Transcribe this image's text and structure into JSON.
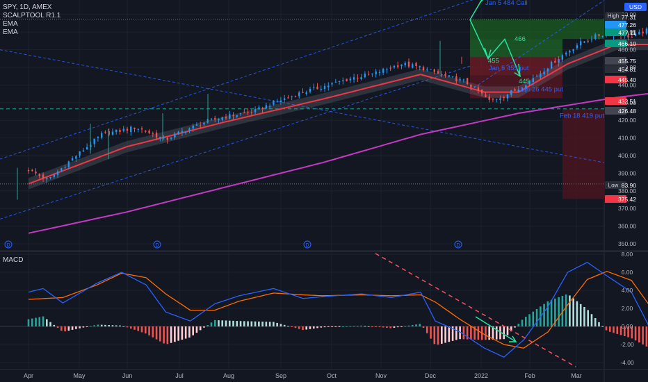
{
  "header": {
    "symbol_line": "SPY, 1D, AMEX",
    "indicators": [
      "SCALPTOOL R1.1",
      "EMA",
      "EMA"
    ],
    "currency": "USD"
  },
  "colors": {
    "background": "#131722",
    "bull": "#2196f3",
    "bear": "#ef5350",
    "ema_fast": "#f23645",
    "ema_slow": "#c339c3",
    "macd_line": "#2962ff",
    "signal_line": "#ff6d00",
    "arrow": "#26e5a0",
    "trend_dash": "#2962ff",
    "macd_trend": "#f7525f"
  },
  "chart_data": [
    {
      "type": "candlestick",
      "panel": "price",
      "title": "SPY, 1D, AMEX",
      "x_labels": [
        "Apr",
        "May",
        "Jun",
        "Jul",
        "Aug",
        "Sep",
        "Oct",
        "Nov",
        "Dec",
        "2022",
        "Feb",
        "Mar"
      ],
      "y_ticks": [
        350,
        360,
        370,
        380,
        390,
        400,
        410,
        420,
        430,
        440,
        450,
        460,
        470,
        480,
        490
      ],
      "ylim": [
        348,
        490
      ],
      "close_path": [
        {
          "t": 0,
          "v": 392
        },
        {
          "t": 0.4,
          "v": 386
        },
        {
          "t": 0.8,
          "v": 396
        },
        {
          "t": 1.5,
          "v": 412
        },
        {
          "t": 2.2,
          "v": 416
        },
        {
          "t": 2.8,
          "v": 409
        },
        {
          "t": 3.0,
          "v": 412
        },
        {
          "t": 3.6,
          "v": 419
        },
        {
          "t": 4.0,
          "v": 422
        },
        {
          "t": 4.6,
          "v": 425
        },
        {
          "t": 5.0,
          "v": 430
        },
        {
          "t": 5.6,
          "v": 436
        },
        {
          "t": 6.0,
          "v": 439
        },
        {
          "t": 6.6,
          "v": 444
        },
        {
          "t": 7.0,
          "v": 446
        },
        {
          "t": 7.6,
          "v": 452
        },
        {
          "t": 8.0,
          "v": 450
        },
        {
          "t": 8.5,
          "v": 445
        },
        {
          "t": 8.9,
          "v": 442
        },
        {
          "t": 9.2,
          "v": 436
        },
        {
          "t": 9.4,
          "v": 431
        },
        {
          "t": 9.7,
          "v": 434
        },
        {
          "t": 10.0,
          "v": 438
        },
        {
          "t": 10.4,
          "v": 446
        },
        {
          "t": 10.8,
          "v": 455
        },
        {
          "t": 11.2,
          "v": 463
        },
        {
          "t": 11.6,
          "v": 468
        },
        {
          "t": 12.0,
          "v": 470
        },
        {
          "t": 12.3,
          "v": 467
        },
        {
          "t": 12.6,
          "v": 471
        },
        {
          "t": 12.8,
          "v": 466
        },
        {
          "t": 13.0,
          "v": 458
        },
        {
          "t": 13.2,
          "v": 467
        },
        {
          "t": 13.4,
          "v": 466
        },
        {
          "t": 13.6,
          "v": 472
        },
        {
          "t": 13.9,
          "v": 470
        },
        {
          "t": 14.1,
          "v": 477
        }
      ],
      "ema_fast_path": [
        {
          "t": 0,
          "v": 384
        },
        {
          "t": 2,
          "v": 405
        },
        {
          "t": 4,
          "v": 419
        },
        {
          "t": 6,
          "v": 432
        },
        {
          "t": 8,
          "v": 446
        },
        {
          "t": 9.3,
          "v": 436
        },
        {
          "t": 10,
          "v": 436
        },
        {
          "t": 11,
          "v": 452
        },
        {
          "t": 12,
          "v": 463
        },
        {
          "t": 13,
          "v": 463
        },
        {
          "t": 14.1,
          "v": 466
        }
      ],
      "ema_slow_path": [
        {
          "t": 0,
          "v": 356
        },
        {
          "t": 2,
          "v": 368
        },
        {
          "t": 4,
          "v": 382
        },
        {
          "t": 6,
          "v": 396
        },
        {
          "t": 8,
          "v": 412
        },
        {
          "t": 10,
          "v": 424
        },
        {
          "t": 12,
          "v": 433
        },
        {
          "t": 14.2,
          "v": 440
        }
      ],
      "price_axis_tags": [
        {
          "label": "477.31",
          "color": "#2a2e39"
        },
        {
          "label": "477.26",
          "color": "#2196f3"
        },
        {
          "label": "477.11",
          "color": "#089981"
        },
        {
          "label": "466.10",
          "color": "#089981"
        },
        {
          "label": "455.75",
          "color": "#434651"
        },
        {
          "label": "454.81",
          "color": "#2a2e39"
        },
        {
          "label": "445.40",
          "color": "#f23645"
        },
        {
          "label": "432.51",
          "color": "#f23645"
        },
        {
          "label": "426.48",
          "color": "#434651"
        },
        {
          "label": "383.90",
          "color": "#2a2e39"
        },
        {
          "label": "375.42",
          "color": "#f23645"
        }
      ],
      "high_label": "High",
      "low_label": "Low",
      "annotations": [
        {
          "text": "Jan 5 484 Call",
          "color": "#2962ff"
        },
        {
          "text": "466",
          "color": "#26e5a0"
        },
        {
          "text": "455",
          "color": "#26e5a0"
        },
        {
          "text": "Jan 5 455 put",
          "color": "#2962ff"
        },
        {
          "text": "445",
          "color": "#26e5a0"
        },
        {
          "text": "Jan 26 445 put",
          "color": "#2962ff"
        },
        {
          "text": "Feb 18 419 put",
          "color": "#2962ff"
        }
      ],
      "dividend_marker": "D"
    },
    {
      "type": "bar+line",
      "panel": "macd",
      "title": "MACD",
      "y_ticks": [
        "8.00",
        "6.00",
        "4.00",
        "2.00",
        "0.00",
        "-2.00",
        "-4.00"
      ],
      "ylim": [
        -4.0,
        8.0
      ],
      "series": [
        {
          "name": "MACD",
          "path": [
            {
              "t": 0,
              "v": 3.8
            },
            {
              "t": 0.3,
              "v": 4.2
            },
            {
              "t": 0.7,
              "v": 2.6
            },
            {
              "t": 1.4,
              "v": 4.8
            },
            {
              "t": 1.9,
              "v": 6.0
            },
            {
              "t": 2.4,
              "v": 4.6
            },
            {
              "t": 2.8,
              "v": 1.6
            },
            {
              "t": 3.3,
              "v": 0.6
            },
            {
              "t": 3.8,
              "v": 2.5
            },
            {
              "t": 4.3,
              "v": 3.4
            },
            {
              "t": 5.0,
              "v": 4.2
            },
            {
              "t": 5.6,
              "v": 3.1
            },
            {
              "t": 6.0,
              "v": 3.3
            },
            {
              "t": 6.8,
              "v": 3.6
            },
            {
              "t": 7.4,
              "v": 3.2
            },
            {
              "t": 8.0,
              "v": 3.8
            },
            {
              "t": 8.3,
              "v": 0.6
            },
            {
              "t": 8.8,
              "v": -0.6
            },
            {
              "t": 9.3,
              "v": -2.4
            },
            {
              "t": 9.7,
              "v": -3.4
            },
            {
              "t": 10.1,
              "v": -1.5
            },
            {
              "t": 10.6,
              "v": 2.2
            },
            {
              "t": 11.0,
              "v": 6.0
            },
            {
              "t": 11.4,
              "v": 7.1
            },
            {
              "t": 11.8,
              "v": 5.6
            },
            {
              "t": 12.3,
              "v": 3.8
            },
            {
              "t": 12.7,
              "v": -0.4
            },
            {
              "t": 13.1,
              "v": 0.3
            },
            {
              "t": 13.5,
              "v": 1.9
            },
            {
              "t": 13.8,
              "v": 0.5
            },
            {
              "t": 14.1,
              "v": 1.3
            }
          ]
        },
        {
          "name": "Signal",
          "path": [
            {
              "t": 0,
              "v": 3.0
            },
            {
              "t": 0.7,
              "v": 3.2
            },
            {
              "t": 1.4,
              "v": 4.6
            },
            {
              "t": 1.9,
              "v": 5.9
            },
            {
              "t": 2.4,
              "v": 5.4
            },
            {
              "t": 2.8,
              "v": 3.6
            },
            {
              "t": 3.3,
              "v": 1.8
            },
            {
              "t": 3.8,
              "v": 1.8
            },
            {
              "t": 4.3,
              "v": 2.8
            },
            {
              "t": 5.0,
              "v": 3.7
            },
            {
              "t": 5.6,
              "v": 3.5
            },
            {
              "t": 6.0,
              "v": 3.4
            },
            {
              "t": 6.8,
              "v": 3.5
            },
            {
              "t": 7.4,
              "v": 3.4
            },
            {
              "t": 8.0,
              "v": 3.5
            },
            {
              "t": 8.3,
              "v": 2.7
            },
            {
              "t": 8.8,
              "v": 0.8
            },
            {
              "t": 9.3,
              "v": -0.9
            },
            {
              "t": 9.7,
              "v": -2.0
            },
            {
              "t": 10.1,
              "v": -2.4
            },
            {
              "t": 10.6,
              "v": -0.6
            },
            {
              "t": 11.0,
              "v": 2.4
            },
            {
              "t": 11.4,
              "v": 5.2
            },
            {
              "t": 11.8,
              "v": 6.1
            },
            {
              "t": 12.3,
              "v": 5.1
            },
            {
              "t": 12.7,
              "v": 2.1
            },
            {
              "t": 13.1,
              "v": 0.6
            },
            {
              "t": 13.5,
              "v": 1.5
            },
            {
              "t": 13.8,
              "v": 1.4
            },
            {
              "t": 14.1,
              "v": 1.1
            }
          ]
        }
      ]
    }
  ]
}
